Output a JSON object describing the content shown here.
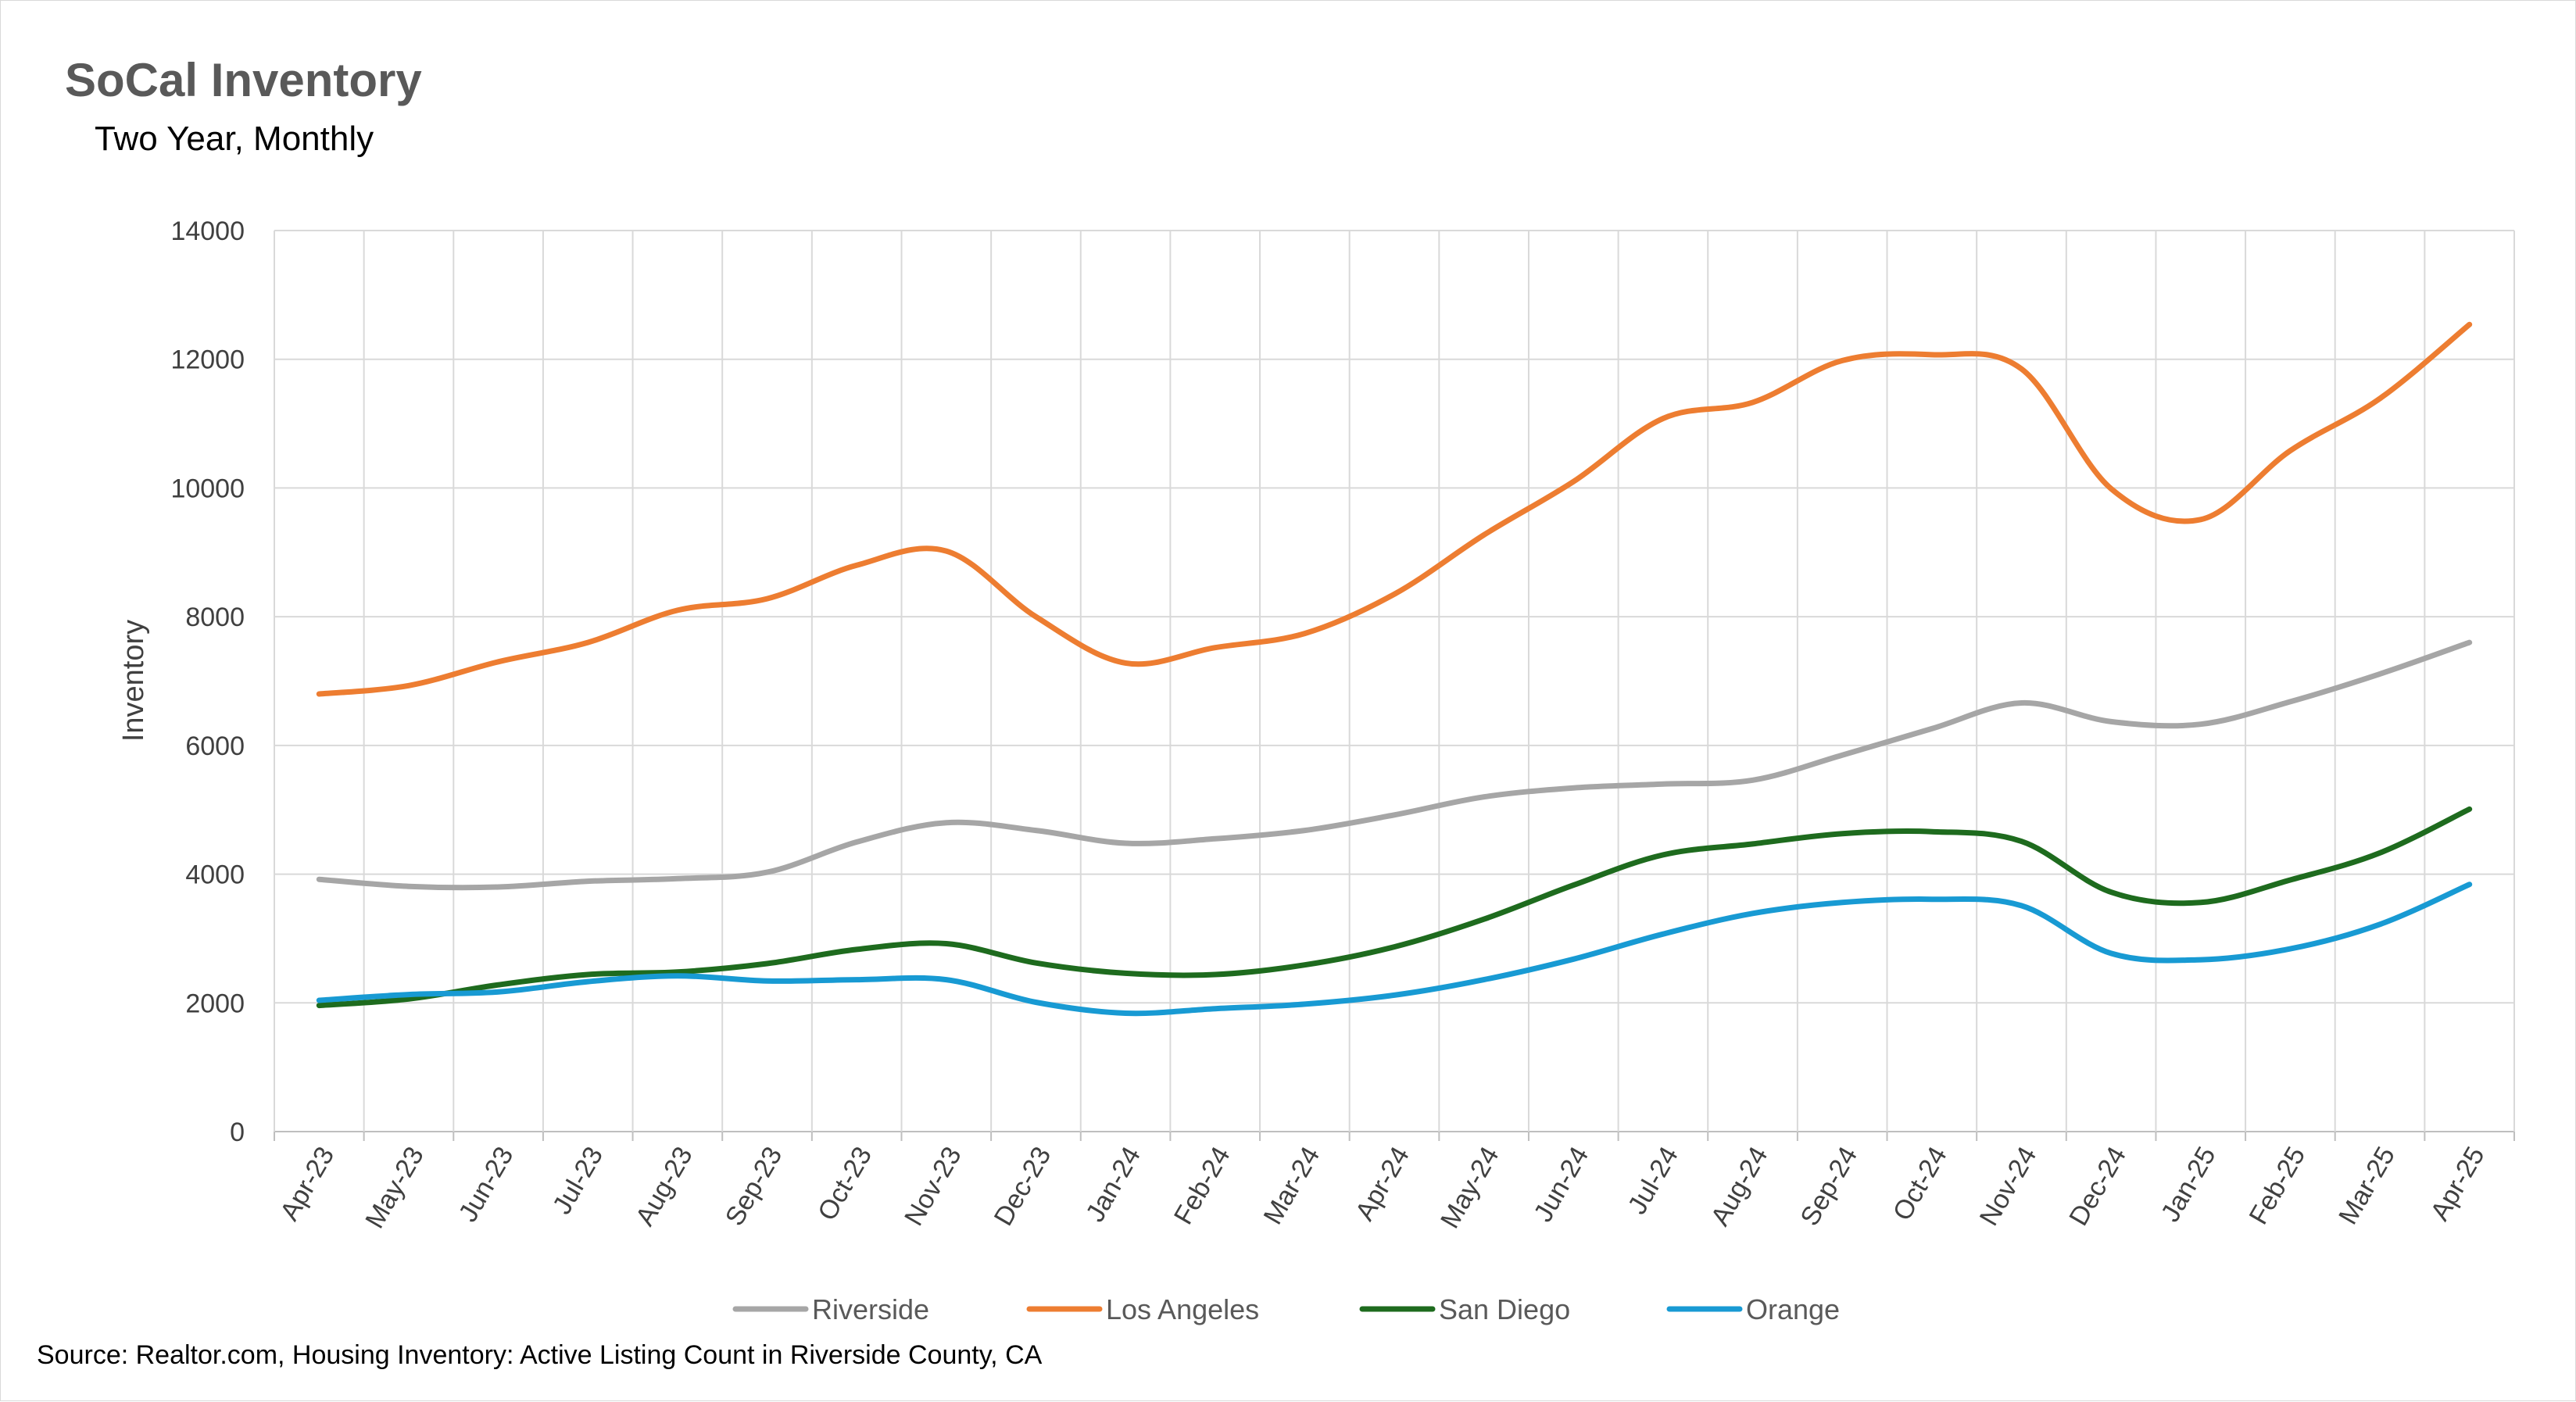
{
  "chart_data": {
    "type": "line",
    "title": "SoCal Inventory",
    "subtitle": "Two Year, Monthly",
    "ylabel": "Inventory",
    "xlabel": "",
    "ylim": [
      0,
      14000
    ],
    "yticks": [
      "0",
      "2000",
      "4000",
      "6000",
      "8000",
      "10000",
      "12000",
      "14000"
    ],
    "grid": true,
    "legend_position": "bottom",
    "smooth": true,
    "categories": [
      "Apr-23",
      "May-23",
      "Jun-23",
      "Jul-23",
      "Aug-23",
      "Sep-23",
      "Oct-23",
      "Nov-23",
      "Dec-23",
      "Jan-24",
      "Feb-24",
      "Mar-24",
      "Apr-24",
      "May-24",
      "Jun-24",
      "Jul-24",
      "Aug-24",
      "Sep-24",
      "Oct-24",
      "Nov-24",
      "Dec-24",
      "Jan-25",
      "Feb-25",
      "Mar-25",
      "Apr-25"
    ],
    "series": [
      {
        "name": "Riverside",
        "color": "#a6a6a6",
        "values": [
          3920,
          3810,
          3800,
          3890,
          3930,
          4030,
          4500,
          4800,
          4680,
          4480,
          4550,
          4680,
          4920,
          5200,
          5340,
          5400,
          5460,
          5850,
          6260,
          6660,
          6370,
          6330,
          6680,
          7110,
          7600
        ]
      },
      {
        "name": "Los Angeles",
        "color": "#ed7d31",
        "values": [
          6800,
          6930,
          7300,
          7600,
          8100,
          8280,
          8800,
          9020,
          8000,
          7280,
          7520,
          7740,
          8350,
          9270,
          10100,
          11080,
          11330,
          11980,
          12070,
          11850,
          9990,
          9510,
          10580,
          11390,
          12540
        ]
      },
      {
        "name": "San Diego",
        "color": "#1e6b1e",
        "values": [
          1960,
          2060,
          2280,
          2440,
          2480,
          2610,
          2830,
          2920,
          2620,
          2460,
          2440,
          2590,
          2870,
          3300,
          3830,
          4300,
          4470,
          4630,
          4660,
          4510,
          3720,
          3560,
          3910,
          4330,
          5010
        ]
      },
      {
        "name": "Orange",
        "color": "#189ad3",
        "values": [
          2040,
          2130,
          2170,
          2330,
          2420,
          2340,
          2360,
          2360,
          2010,
          1840,
          1910,
          1980,
          2120,
          2360,
          2680,
          3070,
          3390,
          3560,
          3610,
          3510,
          2770,
          2670,
          2840,
          3220,
          3840
        ]
      }
    ]
  },
  "source": "Source: Realtor.com, Housing Inventory: Active Listing Count in Riverside County, CA"
}
